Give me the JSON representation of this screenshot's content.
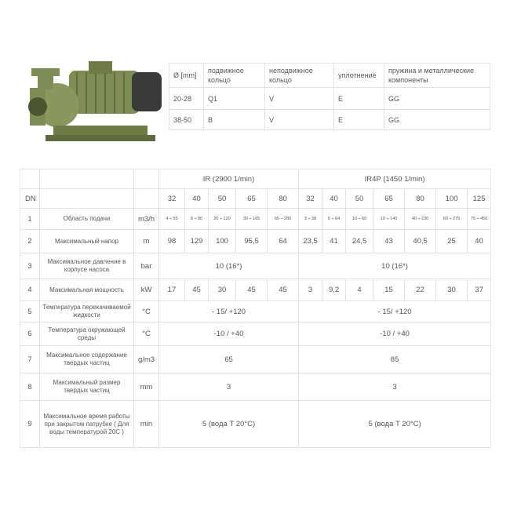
{
  "seal_table": {
    "headers": [
      "Ø [mm]",
      "подвижное кольцо",
      "неподвижное кольцо",
      "уплотнение",
      "пружина и металлические компоненты"
    ],
    "rows": [
      [
        "20-28",
        "Q1",
        "V",
        "E",
        "GG"
      ],
      [
        "38-50",
        "B",
        "V",
        "E",
        "GG"
      ]
    ]
  },
  "spec_table": {
    "groups": [
      "IR (2900 1/min)",
      "IR4P (1450 1/min)"
    ],
    "dn_label": "DN",
    "dn": [
      "32",
      "40",
      "50",
      "65",
      "80",
      "32",
      "40",
      "50",
      "65",
      "80",
      "100",
      "125"
    ],
    "rows": [
      {
        "n": "1",
        "label": "Область подачи",
        "unit": "m3/h",
        "values": [
          "4 ÷ 55",
          "8 ÷ 80",
          "20 ÷ 120",
          "30 ÷ 165",
          "65 ÷ 280",
          "3 ÷ 38",
          "6 ÷ 64",
          "10 ÷ 60",
          "10 ÷ 140",
          "40 ÷ 230",
          "60 ÷ 275",
          "75 ÷ 450"
        ]
      },
      {
        "n": "2",
        "label": "Максимальный напор",
        "unit": "m",
        "values": [
          "98",
          "129",
          "100",
          "95,5",
          "64",
          "23,5",
          "41",
          "24,5",
          "43",
          "40,5",
          "25",
          "40"
        ]
      },
      {
        "n": "3",
        "label": "Максимальное давление в корпусе насоса",
        "unit": "bar",
        "ir": "10 (16*)",
        "ir4p": "10 (16*)"
      },
      {
        "n": "4",
        "label": "Максимальная мощность",
        "unit": "kW",
        "values": [
          "17",
          "45",
          "30",
          "45",
          "45",
          "3",
          "9,2",
          "4",
          "15",
          "22",
          "30",
          "37"
        ]
      },
      {
        "n": "5",
        "label": "Температура перекачиваемой жидкости",
        "unit": "°C",
        "ir": "- 15/ +120",
        "ir4p": "- 15/ +120"
      },
      {
        "n": "6",
        "label": "Температура окружающей среды",
        "unit": "°C",
        "ir": "-10 / +40",
        "ir4p": "-10 / +40"
      },
      {
        "n": "7",
        "label": "Максимальное содержание твердых частиц",
        "unit": "g/m3",
        "ir": "65",
        "ir4p": "85"
      },
      {
        "n": "8",
        "label": "Максимальный размер твердых частиц",
        "unit": "mm",
        "ir": "3",
        "ir4p": "3"
      },
      {
        "n": "9",
        "label": "Максимальное время работы при закрытом патрубке ( Для воды температурой 20С )",
        "unit": "min",
        "ir": "5 (вода T 20°C)",
        "ir4p": "5 (вода T 20°C)"
      }
    ]
  },
  "colors": {
    "pump": "#7e8c55",
    "motor_end": "#3a3a3a",
    "border": "#e2e2e2"
  }
}
